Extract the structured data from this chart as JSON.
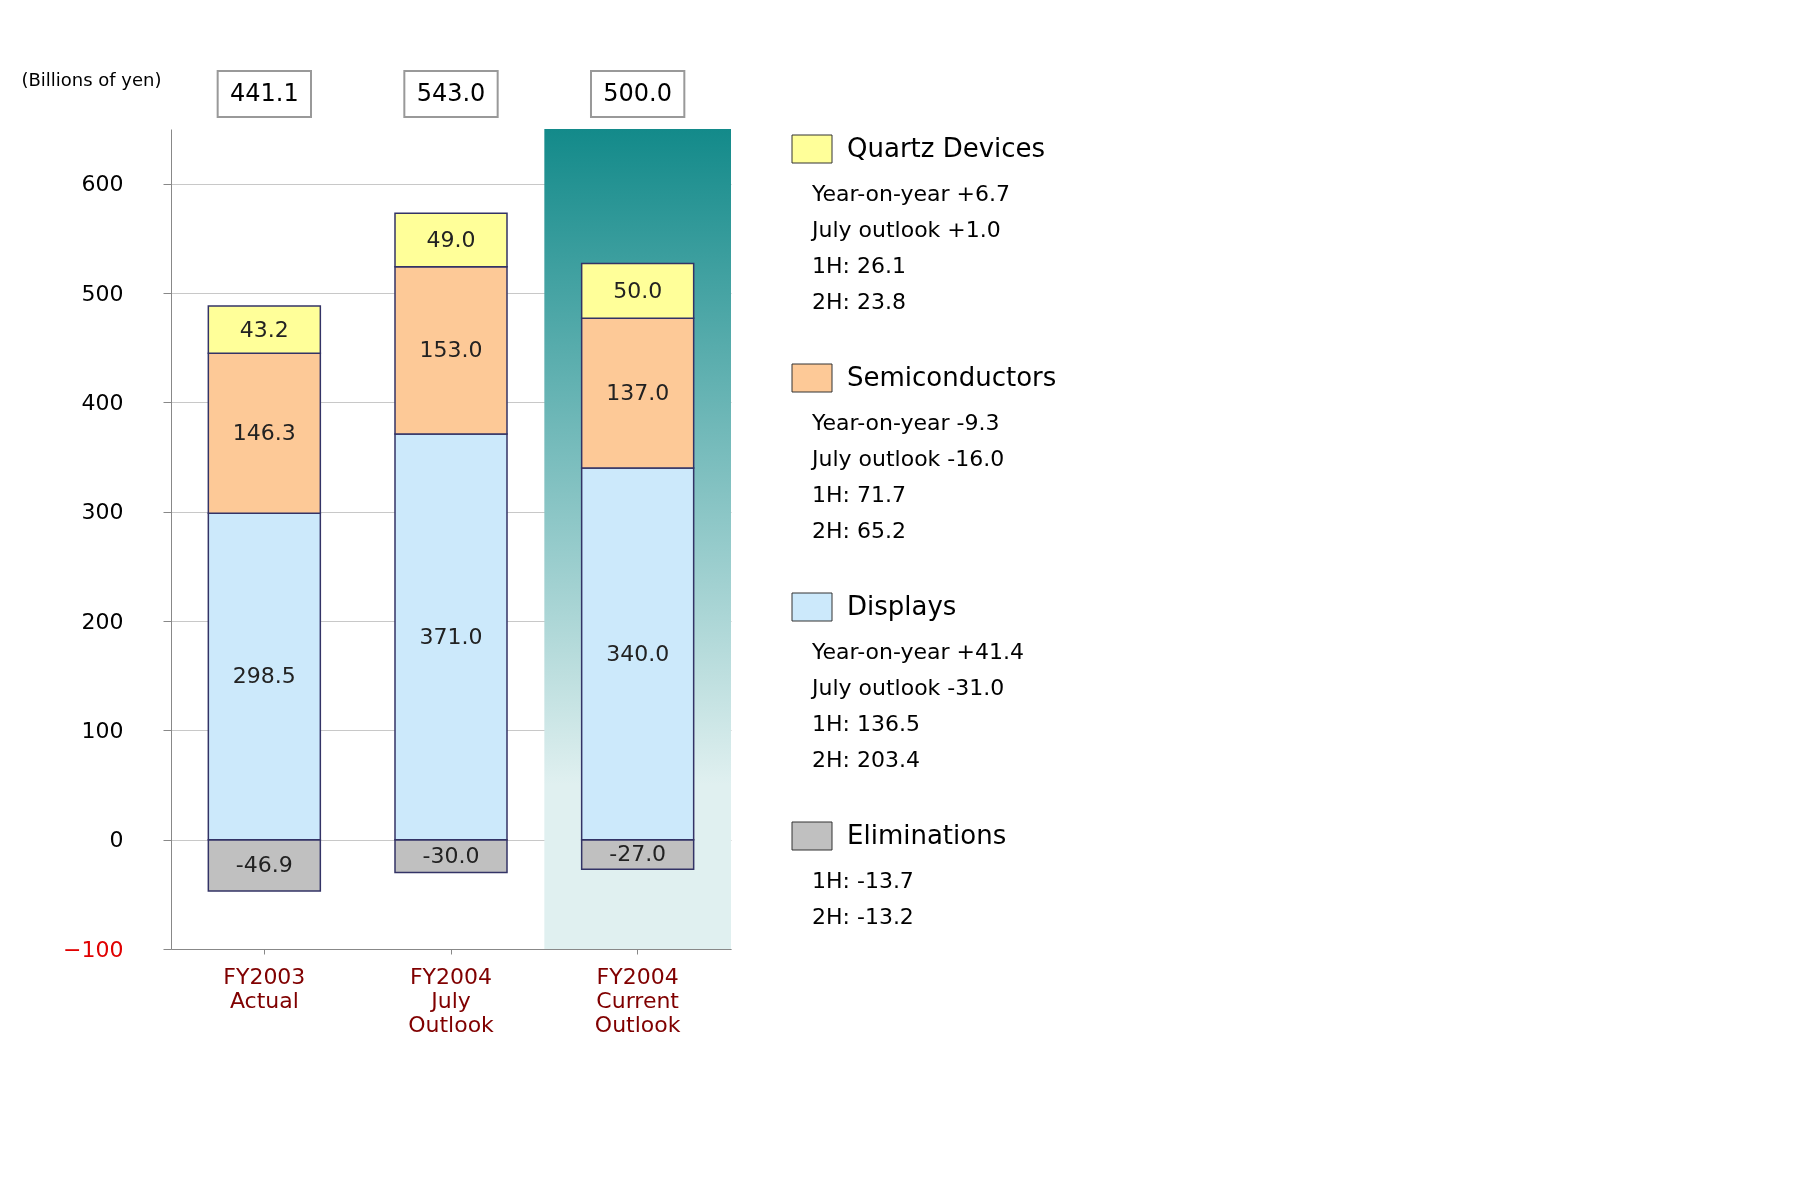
{
  "chart_data": {
    "type": "bar",
    "stacked": true,
    "ylabel": "(Billions of yen)",
    "categories": [
      "FY2003 Actual",
      "FY2004 July Outlook",
      "FY2004 Current Outlook"
    ],
    "series": [
      {
        "name": "Eliminations",
        "color": "#c0c0c0",
        "values": [
          -46.9,
          -30.0,
          -27.0
        ],
        "value_labels": [
          "-46.9",
          "-30.0",
          "-27.0"
        ]
      },
      {
        "name": "Displays",
        "color": "#cce9fb",
        "values": [
          298.5,
          371.0,
          340.0
        ],
        "value_labels": [
          "298.5",
          "371.0",
          "340.0"
        ]
      },
      {
        "name": "Semiconductors",
        "color": "#fdc997",
        "values": [
          146.3,
          153.0,
          137.0
        ],
        "value_labels": [
          "146.3",
          "153.0",
          "137.0"
        ]
      },
      {
        "name": "Quartz Devices",
        "color": "#ffff99",
        "values": [
          43.2,
          49.0,
          50.0
        ],
        "value_labels": [
          "43.2",
          "49.0",
          "50.0"
        ]
      }
    ],
    "ylim": [
      -100,
      650
    ],
    "yticks": [
      -100,
      0,
      100,
      200,
      300,
      400,
      500,
      600
    ],
    "grid": "y",
    "legend": "right",
    "bands": [
      {
        "axis": "x",
        "from": "FY2004 Current Outlook",
        "to": "FY2004 Current Outlook",
        "color": "#138a8a"
      }
    ],
    "annotations": [
      "Year-on-year +6.7",
      "July outlook +1.0",
      "1H: 26.1",
      "2H: 23.8",
      "Year-on-year -9.3",
      "July outlook -16.0",
      "1H: 71.7",
      "2H: 65.2",
      "Year-on-year +41.4",
      "July outlook -31.0",
      "1H: 136.5",
      "2H: 203.4",
      "1H: -13.7",
      "2H: -13.2",
      "441.1",
      "543.0",
      "500.0"
    ]
  }
}
